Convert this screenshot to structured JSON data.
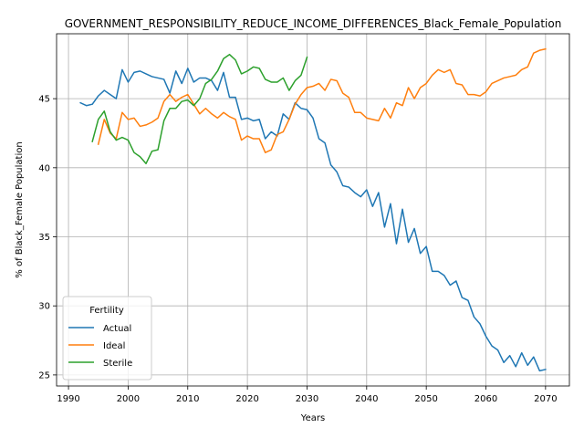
{
  "chart_data": {
    "type": "line",
    "title": "GOVERNMENT_RESPONSIBILITY_REDUCE_INCOME_DIFFERENCES_Black_Female_Population",
    "xlabel": "Years",
    "ylabel": "% of Black_Female Population",
    "xlim": [
      1988,
      2074
    ],
    "ylim": [
      24.2,
      49.7
    ],
    "xticks": [
      1990,
      2000,
      2010,
      2020,
      2030,
      2040,
      2050,
      2060,
      2070
    ],
    "yticks": [
      25,
      30,
      35,
      40,
      45
    ],
    "grid": true,
    "legend": {
      "title": "Fertility",
      "placement": "lower-left"
    },
    "series": [
      {
        "name": "Actual",
        "color": "#1f77b4",
        "x": [
          1992,
          1993,
          1994,
          1995,
          1996,
          1997,
          1998,
          1999,
          2000,
          2001,
          2002,
          2003,
          2004,
          2005,
          2006,
          2007,
          2008,
          2009,
          2010,
          2011,
          2012,
          2013,
          2014,
          2015,
          2016,
          2017,
          2018,
          2019,
          2020,
          2021,
          2022,
          2023,
          2024,
          2025,
          2026,
          2027,
          2028,
          2029,
          2030,
          2031,
          2032,
          2033,
          2034,
          2035,
          2036,
          2037,
          2038,
          2039,
          2040,
          2041,
          2042,
          2043,
          2044,
          2045,
          2046,
          2047,
          2048,
          2049,
          2050,
          2051,
          2052,
          2053,
          2054,
          2055,
          2056,
          2057,
          2058,
          2059,
          2060,
          2061,
          2062,
          2063,
          2064,
          2065,
          2066,
          2067,
          2068,
          2069,
          2070
        ],
        "values": [
          44.7,
          44.5,
          44.6,
          45.2,
          45.6,
          45.3,
          45.0,
          47.1,
          46.2,
          46.9,
          47.0,
          46.8,
          46.6,
          46.5,
          46.4,
          45.4,
          47.0,
          46.1,
          47.2,
          46.2,
          46.5,
          46.5,
          46.3,
          45.6,
          46.9,
          45.1,
          45.1,
          43.5,
          43.6,
          43.4,
          43.5,
          42.1,
          42.6,
          42.3,
          43.9,
          43.5,
          44.7,
          44.3,
          44.2,
          43.6,
          42.1,
          41.8,
          40.2,
          39.7,
          38.7,
          38.6,
          38.2,
          37.9,
          38.4,
          37.2,
          38.2,
          35.7,
          37.4,
          34.5,
          37.0,
          34.6,
          35.6,
          33.8,
          34.3,
          32.5,
          32.5,
          32.2,
          31.5,
          31.8,
          30.6,
          30.4,
          29.2,
          28.7,
          27.8,
          27.1,
          26.8,
          25.9,
          26.4,
          25.6,
          26.6,
          25.7,
          26.3,
          25.3,
          25.4
        ]
      },
      {
        "name": "Ideal",
        "color": "#ff7f0e",
        "x": [
          1995,
          1996,
          1997,
          1998,
          1999,
          2000,
          2001,
          2002,
          2003,
          2004,
          2005,
          2006,
          2007,
          2008,
          2009,
          2010,
          2011,
          2012,
          2013,
          2014,
          2015,
          2016,
          2017,
          2018,
          2019,
          2020,
          2021,
          2022,
          2023,
          2024,
          2025,
          2026,
          2027,
          2028,
          2029,
          2030,
          2031,
          2032,
          2033,
          2034,
          2035,
          2036,
          2037,
          2038,
          2039,
          2040,
          2041,
          2042,
          2043,
          2044,
          2045,
          2046,
          2047,
          2048,
          2049,
          2050,
          2051,
          2052,
          2053,
          2054,
          2055,
          2056,
          2057,
          2058,
          2059,
          2060,
          2061,
          2062,
          2063,
          2064,
          2065,
          2066,
          2067,
          2068,
          2069,
          2070
        ],
        "values": [
          41.7,
          43.5,
          42.5,
          42.1,
          44.0,
          43.5,
          43.6,
          43.0,
          43.1,
          43.3,
          43.6,
          44.8,
          45.3,
          44.8,
          45.1,
          45.3,
          44.6,
          43.9,
          44.3,
          43.9,
          43.6,
          44.0,
          43.7,
          43.5,
          42.0,
          42.3,
          42.1,
          42.1,
          41.1,
          41.3,
          42.4,
          42.6,
          43.5,
          44.6,
          45.3,
          45.8,
          45.9,
          46.1,
          45.6,
          46.4,
          46.3,
          45.4,
          45.1,
          44.0,
          44.0,
          43.6,
          43.5,
          43.4,
          44.3,
          43.6,
          44.7,
          44.5,
          45.8,
          45.0,
          45.8,
          46.1,
          46.7,
          47.1,
          46.9,
          47.1,
          46.1,
          46.0,
          45.3,
          45.3,
          45.2,
          45.5,
          46.1,
          46.3,
          46.5,
          46.6,
          46.7,
          47.1,
          47.3,
          48.3,
          48.5,
          48.6
        ]
      },
      {
        "name": "Sterile",
        "color": "#2ca02c",
        "x": [
          1994,
          1995,
          1996,
          1997,
          1998,
          1999,
          2000,
          2001,
          2002,
          2003,
          2004,
          2005,
          2006,
          2007,
          2008,
          2009,
          2010,
          2011,
          2012,
          2013,
          2014,
          2015,
          2016,
          2017,
          2018,
          2019,
          2020,
          2021,
          2022,
          2023,
          2024,
          2025,
          2026,
          2027,
          2028,
          2029,
          2030
        ],
        "values": [
          41.9,
          43.5,
          44.1,
          42.6,
          42.0,
          42.2,
          42.0,
          41.1,
          40.8,
          40.3,
          41.2,
          41.3,
          43.4,
          44.3,
          44.3,
          44.8,
          44.9,
          44.5,
          45.0,
          46.1,
          46.4,
          47.0,
          47.9,
          48.2,
          47.8,
          46.8,
          47.0,
          47.3,
          47.2,
          46.4,
          46.2,
          46.2,
          46.5,
          45.6,
          46.3,
          46.7,
          48.0
        ]
      }
    ]
  }
}
